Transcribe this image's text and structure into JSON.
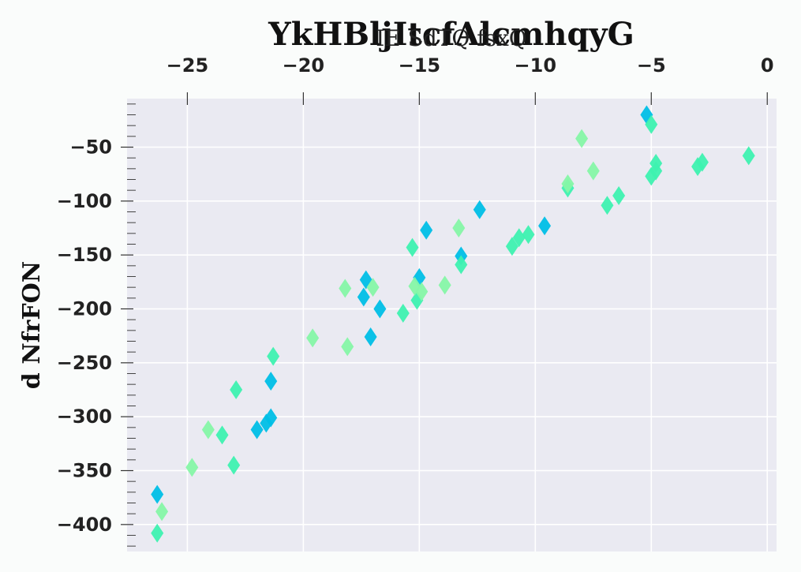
{
  "chart_data": {
    "type": "scatter",
    "title": "YkHBljItcfAlcmhqyG",
    "xlabel": "IE SdTQ fsxQ",
    "ylabel": "d NfrFON",
    "xlim": [
      -27.6,
      0.4
    ],
    "ylim": [
      -425,
      -5
    ],
    "x_ticks": [
      -25,
      -20,
      -15,
      -10,
      -5,
      0
    ],
    "y_ticks": [
      -50,
      -100,
      -150,
      -200,
      -250,
      -300,
      -350,
      -400
    ],
    "x_axis_position": "top",
    "grid": true,
    "background": "#eaeaf2",
    "marker": "diamond",
    "series": [
      {
        "color": "#00bfe6",
        "points": [
          [
            -5.2,
            -20
          ],
          [
            -12.4,
            -108
          ],
          [
            -9.6,
            -123
          ],
          [
            -14.7,
            -127
          ],
          [
            -13.2,
            -151
          ],
          [
            -17.3,
            -173
          ],
          [
            -15.0,
            -171
          ],
          [
            -17.4,
            -189
          ],
          [
            -16.7,
            -200
          ],
          [
            -17.1,
            -226
          ],
          [
            -21.4,
            -267
          ],
          [
            -21.4,
            -301
          ],
          [
            -21.6,
            -306
          ],
          [
            -22.0,
            -312
          ],
          [
            -26.3,
            -372
          ]
        ]
      },
      {
        "color": "#3ef2b0",
        "points": [
          [
            -5.0,
            -29
          ],
          [
            -0.8,
            -58
          ],
          [
            -2.8,
            -64
          ],
          [
            -3.0,
            -68
          ],
          [
            -4.8,
            -65
          ],
          [
            -4.8,
            -72
          ],
          [
            -5.0,
            -77
          ],
          [
            -6.4,
            -95
          ],
          [
            -6.9,
            -104
          ],
          [
            -8.6,
            -88
          ],
          [
            -10.3,
            -131
          ],
          [
            -10.7,
            -134
          ],
          [
            -11.0,
            -142
          ],
          [
            -15.3,
            -143
          ],
          [
            -13.2,
            -159
          ],
          [
            -15.7,
            -204
          ],
          [
            -15.1,
            -192
          ],
          [
            -21.3,
            -244
          ],
          [
            -22.9,
            -275
          ],
          [
            -23.5,
            -317
          ],
          [
            -23.0,
            -345
          ],
          [
            -26.3,
            -408
          ]
        ]
      },
      {
        "color": "#86f7a6",
        "points": [
          [
            -8.0,
            -42
          ],
          [
            -7.5,
            -72
          ],
          [
            -8.6,
            -84
          ],
          [
            -13.3,
            -125
          ],
          [
            -13.9,
            -178
          ],
          [
            -15.2,
            -179
          ],
          [
            -14.9,
            -184
          ],
          [
            -17.0,
            -180
          ],
          [
            -18.2,
            -181
          ],
          [
            -19.6,
            -227
          ],
          [
            -18.1,
            -235
          ],
          [
            -24.1,
            -312
          ],
          [
            -24.8,
            -347
          ],
          [
            -26.1,
            -388
          ]
        ]
      }
    ]
  }
}
